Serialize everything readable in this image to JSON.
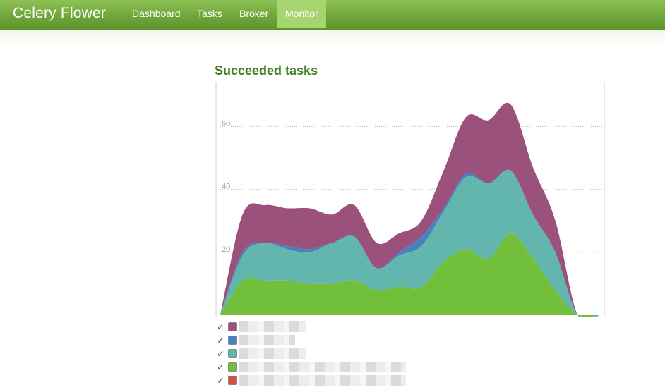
{
  "navbar": {
    "brand": "Celery Flower",
    "items": [
      {
        "label": "Dashboard",
        "active": false
      },
      {
        "label": "Tasks",
        "active": false
      },
      {
        "label": "Broker",
        "active": false
      },
      {
        "label": "Monitor",
        "active": true
      }
    ]
  },
  "chart_data": {
    "type": "area",
    "stacked": true,
    "title": "Succeeded tasks",
    "xlabel": "",
    "ylabel": "",
    "ylim": [
      0,
      74
    ],
    "yticks": [
      20,
      40,
      60
    ],
    "grid": true,
    "x": [
      0,
      1,
      2,
      3,
      4,
      5,
      6,
      7,
      8,
      9,
      10,
      11,
      12,
      13,
      14,
      15,
      16,
      17
    ],
    "series": [
      {
        "color": "#72bf3c",
        "values": [
          0,
          11,
          11,
          11,
          10,
          10,
          11,
          8,
          9,
          9,
          17,
          21,
          18,
          26,
          18,
          8,
          0,
          0
        ]
      },
      {
        "color": "#63b6ad",
        "values": [
          0,
          8,
          12,
          10,
          10,
          13,
          14,
          7,
          10,
          13,
          16,
          23,
          24,
          20,
          14,
          12,
          0,
          0
        ]
      },
      {
        "color": "#4582c0",
        "values": [
          0,
          1,
          0,
          1,
          1,
          0,
          0,
          0,
          1,
          3,
          1,
          1,
          0,
          0,
          0,
          0,
          0,
          0
        ]
      },
      {
        "color": "#9a517c",
        "values": [
          0,
          12,
          12,
          12,
          13,
          9,
          10,
          8,
          6,
          5,
          12,
          18,
          20,
          21,
          15,
          10,
          0,
          0
        ]
      }
    ]
  },
  "legend": {
    "colors": [
      "#9a517c",
      "#4582c0",
      "#63b6ad",
      "#72bf3c",
      "#d8503a"
    ],
    "check": "✓"
  }
}
